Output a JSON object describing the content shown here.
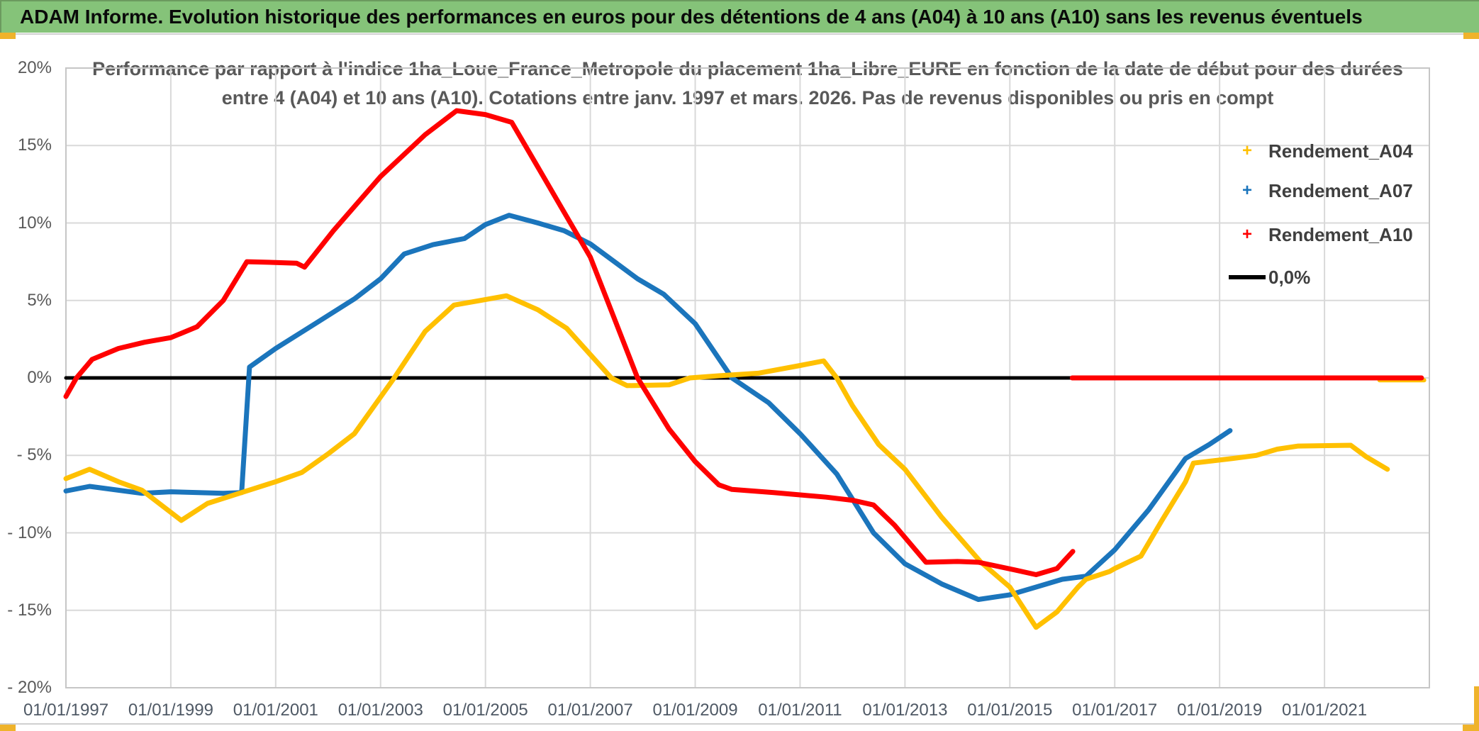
{
  "window": {
    "title": "ADAM Informe. Evolution historique des performances en euros pour des détentions de 4 ans (A04) à 10 ans (A10) sans les revenus éventuels"
  },
  "chart": {
    "title_line1": "Performance par rapport à l'indice 1ha_Loue_France_Metropole  du placement 1ha_Libre_EURE en fonction de la date de début pour des durées",
    "title_line2": "entre 4 (A04) et 10 ans (A10). Cotations entre janv. 1997 et mars. 2026. Pas de revenus disponibles ou pris en compt"
  },
  "chart_data": {
    "type": "line",
    "title": "Performance par rapport à l'indice 1ha_Loue_France_Metropole du placement 1ha_Libre_EURE en fonction de la date de début pour des durées entre 4 (A04) et 10 ans (A10). Cotations entre janv. 1997 et mars. 2026. Pas de revenus disponibles ou pris en compt",
    "xlabel": "",
    "ylabel": "",
    "grid": true,
    "legend_position": "right-top",
    "axis": {
      "year_min": 1997,
      "year_max": 2023,
      "v_min": -20,
      "v_max": 20
    },
    "x_ticks": [
      {
        "year": 1997,
        "label": "01/01/1997"
      },
      {
        "year": 1999,
        "label": "01/01/1999"
      },
      {
        "year": 2001,
        "label": "01/01/2001"
      },
      {
        "year": 2003,
        "label": "01/01/2003"
      },
      {
        "year": 2005,
        "label": "01/01/2005"
      },
      {
        "year": 2007,
        "label": "01/01/2007"
      },
      {
        "year": 2009,
        "label": "01/01/2009"
      },
      {
        "year": 2011,
        "label": "01/01/2011"
      },
      {
        "year": 2013,
        "label": "01/01/2013"
      },
      {
        "year": 2015,
        "label": "01/01/2015"
      },
      {
        "year": 2017,
        "label": "01/01/2017"
      },
      {
        "year": 2019,
        "label": "01/01/2019"
      },
      {
        "year": 2021,
        "label": "01/01/2021"
      }
    ],
    "y_ticks": [
      {
        "v": 20,
        "label": "20%"
      },
      {
        "v": 15,
        "label": "15%"
      },
      {
        "v": 10,
        "label": "10%"
      },
      {
        "v": 5,
        "label": "5%"
      },
      {
        "v": 0,
        "label": "0%"
      },
      {
        "v": -5,
        "label": "- 5%"
      },
      {
        "v": -10,
        "label": "- 10%"
      },
      {
        "v": -15,
        "label": "- 15%"
      },
      {
        "v": -20,
        "label": "- 20%"
      }
    ],
    "legend": [
      {
        "label": "Rendement_A04",
        "color": "#FFC000",
        "marker": "+"
      },
      {
        "label": "Rendement_A07",
        "color": "#1B75BC",
        "marker": "+"
      },
      {
        "label": "Rendement_A10",
        "color": "#FF0000",
        "marker": "+"
      },
      {
        "label": "0,0%",
        "color": "#000000",
        "marker": "line"
      }
    ],
    "series": [
      {
        "name": "zero-reference-line",
        "color": "#000000",
        "width": 5,
        "points": [
          [
            1997.0,
            0
          ],
          [
            2016.19,
            0
          ]
        ]
      },
      {
        "name": "rendement-a04-zero-tail",
        "color": "#FFC000",
        "width": 6,
        "points": [
          [
            2022.05,
            -0.15
          ],
          [
            2022.9,
            -0.15
          ]
        ]
      },
      {
        "name": "rendement-a07",
        "color": "#1B75BC",
        "width": 7,
        "points": [
          [
            1997.0,
            -7.3
          ],
          [
            1997.45,
            -7.0
          ],
          [
            1998.0,
            -7.25
          ],
          [
            1998.45,
            -7.45
          ],
          [
            1999.0,
            -7.35
          ],
          [
            2000.0,
            -7.45
          ],
          [
            2000.35,
            -7.4
          ],
          [
            2000.5,
            0.7
          ],
          [
            2001.0,
            1.9
          ],
          [
            2001.8,
            3.6
          ],
          [
            2002.5,
            5.1
          ],
          [
            2003.0,
            6.4
          ],
          [
            2003.45,
            8.0
          ],
          [
            2004.0,
            8.6
          ],
          [
            2004.6,
            9.0
          ],
          [
            2005.0,
            9.9
          ],
          [
            2005.45,
            10.5
          ],
          [
            2006.0,
            10.0
          ],
          [
            2006.5,
            9.5
          ],
          [
            2007.0,
            8.65
          ],
          [
            2007.9,
            6.4
          ],
          [
            2008.4,
            5.4
          ],
          [
            2009.0,
            3.5
          ],
          [
            2009.7,
            0.0
          ],
          [
            2010.4,
            -1.6
          ],
          [
            2011.0,
            -3.6
          ],
          [
            2011.7,
            -6.2
          ],
          [
            2012.4,
            -10.0
          ],
          [
            2013.0,
            -12.0
          ],
          [
            2013.7,
            -13.3
          ],
          [
            2014.4,
            -14.3
          ],
          [
            2015.0,
            -14.0
          ],
          [
            2015.5,
            -13.5
          ],
          [
            2016.0,
            -13.0
          ],
          [
            2016.45,
            -12.8
          ],
          [
            2017.0,
            -11.1
          ],
          [
            2017.65,
            -8.5
          ],
          [
            2018.35,
            -5.2
          ],
          [
            2018.8,
            -4.3
          ],
          [
            2019.2,
            -3.4
          ]
        ]
      },
      {
        "name": "rendement-a04",
        "color": "#FFC000",
        "width": 7,
        "points": [
          [
            1997.0,
            -6.5
          ],
          [
            1997.45,
            -5.9
          ],
          [
            1998.0,
            -6.7
          ],
          [
            1998.45,
            -7.25
          ],
          [
            1999.2,
            -9.2
          ],
          [
            1999.7,
            -8.1
          ],
          [
            2000.35,
            -7.4
          ],
          [
            2001.0,
            -6.7
          ],
          [
            2001.5,
            -6.1
          ],
          [
            2002.0,
            -4.9
          ],
          [
            2002.5,
            -3.6
          ],
          [
            2003.26,
            0.0
          ],
          [
            2003.85,
            3.0
          ],
          [
            2004.4,
            4.7
          ],
          [
            2004.9,
            5.0
          ],
          [
            2005.4,
            5.3
          ],
          [
            2006.0,
            4.4
          ],
          [
            2006.55,
            3.2
          ],
          [
            2007.4,
            0.0
          ],
          [
            2007.7,
            -0.5
          ],
          [
            2008.5,
            -0.45
          ],
          [
            2008.9,
            0.0
          ],
          [
            2009.5,
            0.15
          ],
          [
            2010.2,
            0.3
          ],
          [
            2011.0,
            0.8
          ],
          [
            2011.45,
            1.1
          ],
          [
            2011.7,
            0.0
          ],
          [
            2012.0,
            -1.8
          ],
          [
            2012.5,
            -4.3
          ],
          [
            2013.0,
            -5.9
          ],
          [
            2013.7,
            -9.0
          ],
          [
            2014.45,
            -11.9
          ],
          [
            2015.0,
            -13.5
          ],
          [
            2015.5,
            -16.1
          ],
          [
            2015.9,
            -15.1
          ],
          [
            2016.3,
            -13.5
          ],
          [
            2016.45,
            -13.0
          ],
          [
            2016.9,
            -12.5
          ],
          [
            2017.0,
            -12.3
          ],
          [
            2017.5,
            -11.5
          ],
          [
            2017.9,
            -9.2
          ],
          [
            2018.35,
            -6.7
          ],
          [
            2018.5,
            -5.5
          ],
          [
            2019.25,
            -5.2
          ],
          [
            2019.7,
            -5.0
          ],
          [
            2020.1,
            -4.6
          ],
          [
            2020.5,
            -4.4
          ],
          [
            2021.5,
            -4.35
          ],
          [
            2021.8,
            -5.1
          ],
          [
            2022.2,
            -5.9
          ]
        ]
      },
      {
        "name": "rendement-a10",
        "color": "#FF0000",
        "width": 7,
        "points": [
          [
            1997.0,
            -1.2
          ],
          [
            1997.2,
            0.0
          ],
          [
            1997.5,
            1.2
          ],
          [
            1998.0,
            1.9
          ],
          [
            1998.5,
            2.3
          ],
          [
            1999.0,
            2.6
          ],
          [
            1999.5,
            3.3
          ],
          [
            2000.0,
            5.0
          ],
          [
            2000.45,
            7.5
          ],
          [
            2001.0,
            7.45
          ],
          [
            2001.4,
            7.4
          ],
          [
            2001.55,
            7.15
          ],
          [
            2002.1,
            9.5
          ],
          [
            2003.0,
            13.0
          ],
          [
            2003.85,
            15.7
          ],
          [
            2004.45,
            17.25
          ],
          [
            2005.0,
            17.0
          ],
          [
            2005.5,
            16.5
          ],
          [
            2006.0,
            13.6
          ],
          [
            2006.5,
            10.7
          ],
          [
            2007.0,
            7.8
          ],
          [
            2007.3,
            5.2
          ],
          [
            2007.9,
            0.0
          ],
          [
            2008.5,
            -3.3
          ],
          [
            2009.0,
            -5.4
          ],
          [
            2009.45,
            -6.9
          ],
          [
            2009.7,
            -7.2
          ],
          [
            2010.5,
            -7.4
          ],
          [
            2011.0,
            -7.55
          ],
          [
            2011.5,
            -7.7
          ],
          [
            2012.0,
            -7.9
          ],
          [
            2012.4,
            -8.2
          ],
          [
            2012.8,
            -9.5
          ],
          [
            2013.4,
            -11.9
          ],
          [
            2014.0,
            -11.85
          ],
          [
            2014.4,
            -11.9
          ],
          [
            2015.1,
            -12.4
          ],
          [
            2015.5,
            -12.7
          ],
          [
            2015.9,
            -12.3
          ],
          [
            2016.2,
            -11.2
          ]
        ]
      },
      {
        "name": "rendement-a10-zero-tail",
        "color": "#FF0000",
        "width": 7,
        "points": [
          [
            2016.19,
            0
          ],
          [
            2022.85,
            0
          ]
        ]
      }
    ]
  }
}
